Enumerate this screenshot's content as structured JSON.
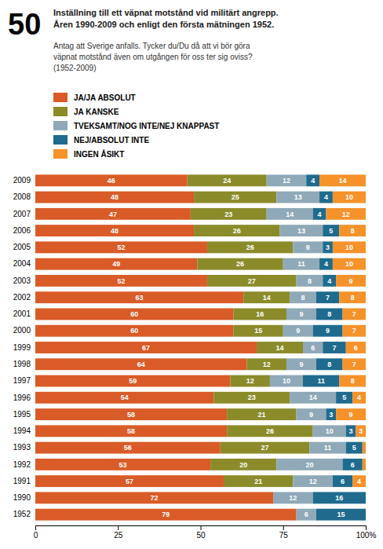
{
  "chart_data": {
    "type": "bar",
    "orientation": "horizontal",
    "stacked": true,
    "data_labels": true,
    "legend": "top",
    "annotations": [
      "50"
    ],
    "title": "Inställning till ett väpnat motstånd vid militärt angrepp.\nÅren 1990-2009 och enligt den första mätningen 1952.",
    "subtitle": "Antag att Sverige anfalls. Tycker du/Du då att vi bör göra\nväpnat motstånd även om utgången för oss ter sig oviss?\n(1952-2009)",
    "categories": [
      "2009",
      "2008",
      "2007",
      "2006",
      "2005",
      "2004",
      "2003",
      "2002",
      "2001",
      "2000",
      "1999",
      "1998",
      "1997",
      "1996",
      "1995",
      "1994",
      "1993",
      "1992",
      "1991",
      "1990",
      "1952"
    ],
    "series": [
      {
        "name": "JA/JA ABSOLUT",
        "color": "#D95B27",
        "values": [
          46,
          48,
          47,
          48,
          52,
          49,
          52,
          63,
          60,
          60,
          67,
          64,
          59,
          54,
          58,
          58,
          56,
          53,
          57,
          72,
          79
        ],
        "value_labels": [
          "46",
          "48",
          "47",
          "48",
          "52",
          "49",
          "52",
          "63",
          "60",
          "60",
          "67",
          "64",
          "59",
          "54",
          "58",
          "58",
          "56",
          "53",
          "57",
          "72",
          "79"
        ]
      },
      {
        "name": "JA KANSKE",
        "color": "#8B8B2A",
        "values": [
          24,
          25,
          23,
          26,
          26,
          26,
          27,
          14,
          16,
          15,
          14,
          12,
          12,
          23,
          21,
          26,
          27,
          20,
          21,
          0,
          0
        ],
        "value_labels": [
          "24",
          "25",
          "23",
          "26",
          "26",
          "26",
          "27",
          "14",
          "16",
          "15",
          "14",
          "12",
          "12",
          "23",
          "21",
          "26",
          "27",
          "20",
          "21",
          null,
          null
        ]
      },
      {
        "name": "TVEKSAMT/NOG INTE/NEJ KNAPPAST",
        "color": "#8FA9B8",
        "values": [
          12,
          13,
          14,
          13,
          9,
          11,
          8,
          8,
          9,
          9,
          6,
          9,
          10,
          14,
          9,
          10,
          11,
          20,
          12,
          12,
          6
        ],
        "value_labels": [
          "12",
          "13",
          "14",
          "13",
          "9",
          "11",
          "8",
          "8",
          "9",
          "9",
          "6",
          "9",
          "10",
          "14",
          "9",
          "10",
          "11",
          "20",
          "12",
          "12",
          "6"
        ]
      },
      {
        "name": "NEJ/ABSOLUT INTE",
        "color": "#1F6B8E",
        "values": [
          4,
          4,
          4,
          5,
          3,
          4,
          4,
          7,
          8,
          9,
          7,
          8,
          11,
          5,
          3,
          3,
          5,
          6,
          6,
          16,
          15
        ],
        "value_labels": [
          "4",
          "4",
          "4",
          "5",
          "3",
          "4",
          "4",
          "7",
          "8",
          "9",
          "7",
          "8",
          "11",
          "5",
          "3",
          "3",
          "5",
          "6",
          "6",
          "16",
          "15"
        ]
      },
      {
        "name": "INGEN ÅSIKT",
        "color": "#F5922A",
        "values": [
          14,
          10,
          12,
          8,
          10,
          10,
          9,
          8,
          7,
          7,
          6,
          7,
          8,
          4,
          9,
          3,
          1,
          1,
          4,
          0,
          0
        ],
        "value_labels": [
          "14",
          "10",
          "12",
          "8",
          "10",
          "10",
          "9",
          "8",
          "7",
          "7",
          "6",
          "7",
          "8",
          "4",
          "9",
          "3",
          null,
          null,
          "4",
          null,
          null
        ]
      }
    ],
    "xlim": [
      0,
      100
    ],
    "xticks": [
      0,
      25,
      50,
      75,
      {
        "value": 100,
        "label": "100%"
      }
    ]
  }
}
